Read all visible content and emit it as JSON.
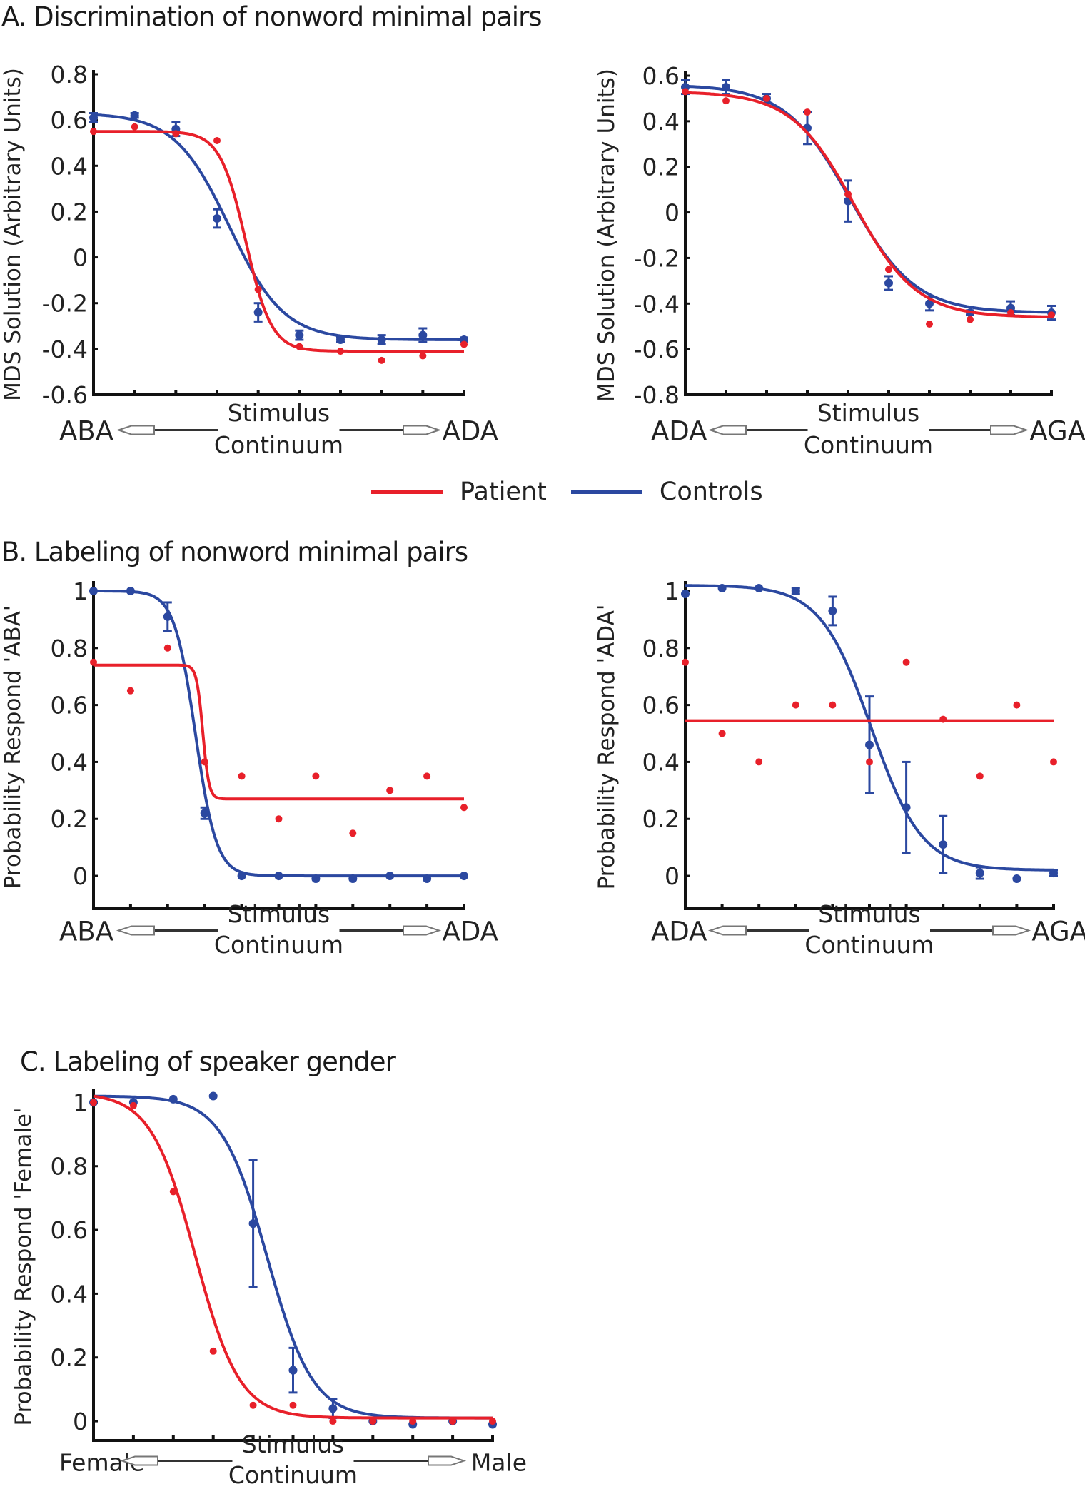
{
  "sections": {
    "A": "A. Discrimination of nonword minimal pairs",
    "B": "B. Labeling of nonword minimal pairs",
    "C": "C. Labeling of speaker gender"
  },
  "legend": [
    {
      "name": "Patient",
      "color": "#e8202a"
    },
    {
      "name": "Controls",
      "color": "#2b48a0"
    }
  ],
  "chart_data": [
    {
      "id": "A-left",
      "type": "line",
      "section": "A",
      "ylabel": "MDS Solution (Arbitrary Units)",
      "xlabel": "Stimulus Continuum",
      "x_left": "ABA",
      "x_right": "ADA",
      "ylim": [
        -0.6,
        0.8
      ],
      "yticks": [
        -0.6,
        -0.4,
        -0.2,
        0,
        0.2,
        0.4,
        0.6,
        0.8
      ],
      "ytick_labels": [
        "-0.6",
        "-0.4",
        "-0.2",
        "0",
        "0.2",
        "0.4",
        "0.6",
        "0.8"
      ],
      "x": [
        1,
        2,
        3,
        4,
        5,
        6,
        7,
        8,
        9,
        10
      ],
      "series": [
        {
          "name": "Controls",
          "values": [
            0.61,
            0.62,
            0.56,
            0.17,
            -0.24,
            -0.34,
            -0.36,
            -0.36,
            -0.34,
            -0.36
          ],
          "errors": [
            0.02,
            0.01,
            0.03,
            0.04,
            0.04,
            0.02,
            0.01,
            0.02,
            0.03,
            0.01
          ],
          "fit": {
            "top": 0.63,
            "bottom": -0.36,
            "mid": 4.3,
            "slope": 1.5
          }
        },
        {
          "name": "Patient",
          "values": [
            0.55,
            0.57,
            0.54,
            0.51,
            -0.14,
            -0.39,
            -0.41,
            -0.45,
            -0.43,
            -0.38
          ],
          "fit": {
            "top": 0.55,
            "bottom": -0.41,
            "mid": 4.7,
            "slope": 3.2
          }
        }
      ]
    },
    {
      "id": "A-right",
      "type": "line",
      "section": "A",
      "ylabel": "MDS Solution (Arbitrary Units)",
      "xlabel": "Stimulus Continuum",
      "x_left": "ADA",
      "x_right": "AGA",
      "ylim": [
        -0.8,
        0.6
      ],
      "yticks": [
        -0.8,
        -0.6,
        -0.4,
        -0.2,
        0,
        0.2,
        0.4,
        0.6
      ],
      "ytick_labels": [
        "-0.8",
        "-0.6",
        "-0.4",
        "-0.2",
        "0",
        "0.2",
        "0.4",
        "0.6"
      ],
      "x": [
        1,
        2,
        3,
        4,
        5,
        6,
        7,
        8,
        9,
        10
      ],
      "series": [
        {
          "name": "Controls",
          "values": [
            0.55,
            0.55,
            0.5,
            0.37,
            0.05,
            -0.31,
            -0.4,
            -0.44,
            -0.42,
            -0.44
          ],
          "errors": [
            0.03,
            0.03,
            0.02,
            0.07,
            0.09,
            0.03,
            0.03,
            0.01,
            0.03,
            0.03
          ],
          "fit": {
            "top": 0.56,
            "bottom": -0.44,
            "mid": 5.05,
            "slope": 1.25
          }
        },
        {
          "name": "Patient",
          "values": [
            0.53,
            0.49,
            0.5,
            0.44,
            0.08,
            -0.25,
            -0.49,
            -0.47,
            -0.44,
            -0.45
          ],
          "fit": {
            "top": 0.53,
            "bottom": -0.46,
            "mid": 5.15,
            "slope": 1.3
          }
        }
      ]
    },
    {
      "id": "B-left",
      "type": "line",
      "section": "B",
      "ylabel": "Probability Respond 'ABA'",
      "xlabel": "Stimulus Continuum",
      "x_left": "ABA",
      "x_right": "ADA",
      "ylim": [
        -0.07,
        1.02
      ],
      "yticks": [
        0,
        0.2,
        0.4,
        0.6,
        0.8,
        1
      ],
      "ytick_labels": [
        "0",
        "0.2",
        "0.4",
        "0.6",
        "0.8",
        "1"
      ],
      "x": [
        1,
        2,
        3,
        4,
        5,
        6,
        7,
        8,
        9,
        10,
        11
      ],
      "series": [
        {
          "name": "Controls",
          "values": [
            1.0,
            1.0,
            0.91,
            0.22,
            0.0,
            0.0,
            -0.01,
            -0.01,
            0.0,
            -0.01,
            0.0
          ],
          "errors": [
            0.0,
            0.0,
            0.05,
            0.02,
            0.0,
            0.0,
            0.0,
            0.0,
            0.0,
            0.0,
            0.0
          ],
          "fit": {
            "top": 1.0,
            "bottom": 0.0,
            "mid": 3.75,
            "slope": 3.5
          }
        },
        {
          "name": "Patient",
          "values": [
            0.75,
            0.65,
            0.8,
            0.4,
            0.35,
            0.2,
            0.35,
            0.15,
            0.3,
            0.35,
            0.24
          ],
          "fit": {
            "top": 0.74,
            "bottom": 0.27,
            "mid": 3.95,
            "slope": 12
          }
        }
      ]
    },
    {
      "id": "B-right",
      "type": "line",
      "section": "B",
      "ylabel": "Probability Respond 'ADA'",
      "xlabel": "Stimulus Continuum",
      "x_left": "ADA",
      "x_right": "AGA",
      "ylim": [
        -0.07,
        1.02
      ],
      "yticks": [
        0,
        0.2,
        0.4,
        0.6,
        0.8,
        1
      ],
      "ytick_labels": [
        "0",
        "0.2",
        "0.4",
        "0.6",
        "0.8",
        "1"
      ],
      "x": [
        1,
        2,
        3,
        4,
        5,
        6,
        7,
        8,
        9,
        10,
        11
      ],
      "series": [
        {
          "name": "Controls",
          "values": [
            0.99,
            1.01,
            1.01,
            1.0,
            0.93,
            0.46,
            0.24,
            0.11,
            0.01,
            -0.01,
            0.01
          ],
          "errors": [
            0.0,
            0.0,
            0.0,
            0.01,
            0.05,
            0.17,
            0.16,
            0.1,
            0.02,
            0.0,
            0.01
          ],
          "fit": {
            "top": 1.02,
            "bottom": 0.02,
            "mid": 6.05,
            "slope": 1.45
          }
        },
        {
          "name": "Patient",
          "values": [
            0.75,
            0.5,
            0.4,
            0.6,
            0.6,
            0.4,
            0.75,
            0.55,
            0.35,
            0.6,
            0.4
          ],
          "fit": {
            "top": 0.545,
            "bottom": 0.545,
            "mid": 6,
            "slope": 1
          }
        }
      ]
    },
    {
      "id": "C",
      "type": "line",
      "section": "C",
      "ylabel": "Probability Respond 'Female'",
      "xlabel": "Stimulus Continuum",
      "x_left": "Female",
      "x_right": "Male",
      "ylim": [
        -0.02,
        1.03
      ],
      "yticks": [
        0,
        0.2,
        0.4,
        0.6,
        0.8,
        1
      ],
      "ytick_labels": [
        "0",
        "0.2",
        "0.4",
        "0.6",
        "0.8",
        "1"
      ],
      "x": [
        1,
        2,
        3,
        4,
        5,
        6,
        7,
        8,
        9,
        10,
        11
      ],
      "series": [
        {
          "name": "Controls",
          "values": [
            1.0,
            1.0,
            1.01,
            1.02,
            0.62,
            0.16,
            0.04,
            0.0,
            -0.01,
            0.0,
            -0.01
          ],
          "errors": [
            0.0,
            0.0,
            0.0,
            0.0,
            0.2,
            0.07,
            0.03,
            0.0,
            0.0,
            0.0,
            0.0
          ],
          "fit": {
            "top": 1.02,
            "bottom": 0.01,
            "mid": 5.35,
            "slope": 1.75
          }
        },
        {
          "name": "Patient",
          "values": [
            1.0,
            0.99,
            0.72,
            0.22,
            0.05,
            0.05,
            0.0,
            0.0,
            0.0,
            0.0,
            0.0
          ],
          "fit": {
            "top": 1.03,
            "bottom": 0.01,
            "mid": 3.55,
            "slope": 1.8
          }
        }
      ]
    }
  ]
}
